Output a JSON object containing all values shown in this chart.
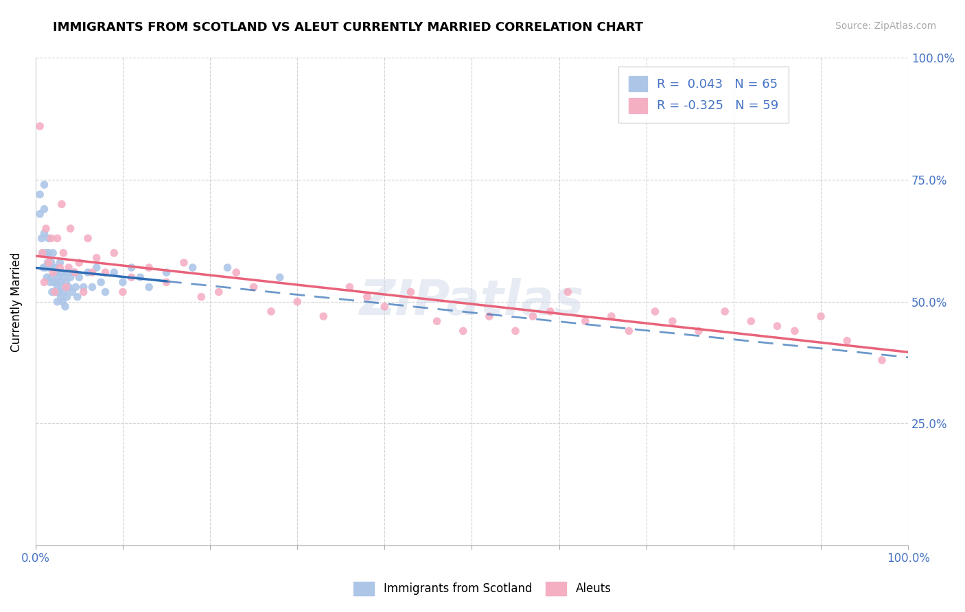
{
  "title": "IMMIGRANTS FROM SCOTLAND VS ALEUT CURRENTLY MARRIED CORRELATION CHART",
  "source_text": "Source: ZipAtlas.com",
  "ylabel": "Currently Married",
  "x_min": 0.0,
  "x_max": 1.0,
  "y_min": 0.0,
  "y_max": 1.0,
  "x_ticks": [
    0.0,
    0.1,
    0.2,
    0.3,
    0.4,
    0.5,
    0.6,
    0.7,
    0.8,
    0.9,
    1.0
  ],
  "y_ticks": [
    0.25,
    0.5,
    0.75,
    1.0
  ],
  "y_tick_labels": [
    "25.0%",
    "50.0%",
    "75.0%",
    "100.0%"
  ],
  "scotland_color": "#adc6e8",
  "aleut_color": "#f4afc3",
  "scotland_line_color": "#2e6db4",
  "aleut_line_color": "#e8637a",
  "R_scotland": 0.043,
  "N_scotland": 65,
  "R_aleut": -0.325,
  "N_aleut": 59,
  "legend_text_color": "#4472c4",
  "watermark_text": "ZIPatlas",
  "scotland_points_x": [
    0.005,
    0.005,
    0.007,
    0.008,
    0.009,
    0.01,
    0.01,
    0.01,
    0.012,
    0.012,
    0.013,
    0.014,
    0.015,
    0.015,
    0.016,
    0.017,
    0.018,
    0.018,
    0.019,
    0.02,
    0.02,
    0.021,
    0.022,
    0.022,
    0.023,
    0.024,
    0.024,
    0.025,
    0.025,
    0.026,
    0.027,
    0.028,
    0.028,
    0.029,
    0.03,
    0.03,
    0.031,
    0.032,
    0.033,
    0.034,
    0.035,
    0.036,
    0.037,
    0.038,
    0.04,
    0.042,
    0.044,
    0.046,
    0.048,
    0.05,
    0.055,
    0.06,
    0.065,
    0.07,
    0.075,
    0.08,
    0.09,
    0.1,
    0.11,
    0.12,
    0.13,
    0.15,
    0.18,
    0.22,
    0.28
  ],
  "scotland_points_y": [
    0.72,
    0.68,
    0.63,
    0.6,
    0.57,
    0.74,
    0.69,
    0.64,
    0.6,
    0.57,
    0.55,
    0.58,
    0.63,
    0.6,
    0.57,
    0.54,
    0.58,
    0.55,
    0.52,
    0.6,
    0.57,
    0.54,
    0.52,
    0.57,
    0.54,
    0.52,
    0.56,
    0.53,
    0.5,
    0.55,
    0.52,
    0.58,
    0.54,
    0.51,
    0.56,
    0.53,
    0.5,
    0.55,
    0.52,
    0.49,
    0.54,
    0.51,
    0.56,
    0.53,
    0.55,
    0.52,
    0.56,
    0.53,
    0.51,
    0.55,
    0.53,
    0.56,
    0.53,
    0.57,
    0.54,
    0.52,
    0.56,
    0.54,
    0.57,
    0.55,
    0.53,
    0.56,
    0.57,
    0.57,
    0.55
  ],
  "aleut_points_x": [
    0.005,
    0.008,
    0.01,
    0.012,
    0.015,
    0.018,
    0.02,
    0.022,
    0.025,
    0.028,
    0.03,
    0.032,
    0.035,
    0.038,
    0.04,
    0.045,
    0.05,
    0.055,
    0.06,
    0.065,
    0.07,
    0.08,
    0.09,
    0.1,
    0.11,
    0.13,
    0.15,
    0.17,
    0.19,
    0.21,
    0.23,
    0.25,
    0.27,
    0.3,
    0.33,
    0.36,
    0.38,
    0.4,
    0.43,
    0.46,
    0.49,
    0.52,
    0.55,
    0.57,
    0.59,
    0.61,
    0.63,
    0.66,
    0.68,
    0.71,
    0.73,
    0.76,
    0.79,
    0.82,
    0.85,
    0.87,
    0.9,
    0.93,
    0.97
  ],
  "aleut_points_y": [
    0.86,
    0.6,
    0.54,
    0.65,
    0.58,
    0.63,
    0.56,
    0.52,
    0.63,
    0.57,
    0.7,
    0.6,
    0.53,
    0.57,
    0.65,
    0.56,
    0.58,
    0.52,
    0.63,
    0.56,
    0.59,
    0.56,
    0.6,
    0.52,
    0.55,
    0.57,
    0.54,
    0.58,
    0.51,
    0.52,
    0.56,
    0.53,
    0.48,
    0.5,
    0.47,
    0.53,
    0.51,
    0.49,
    0.52,
    0.46,
    0.44,
    0.47,
    0.44,
    0.47,
    0.48,
    0.52,
    0.46,
    0.47,
    0.44,
    0.48,
    0.46,
    0.44,
    0.48,
    0.46,
    0.45,
    0.44,
    0.47,
    0.42,
    0.38
  ]
}
